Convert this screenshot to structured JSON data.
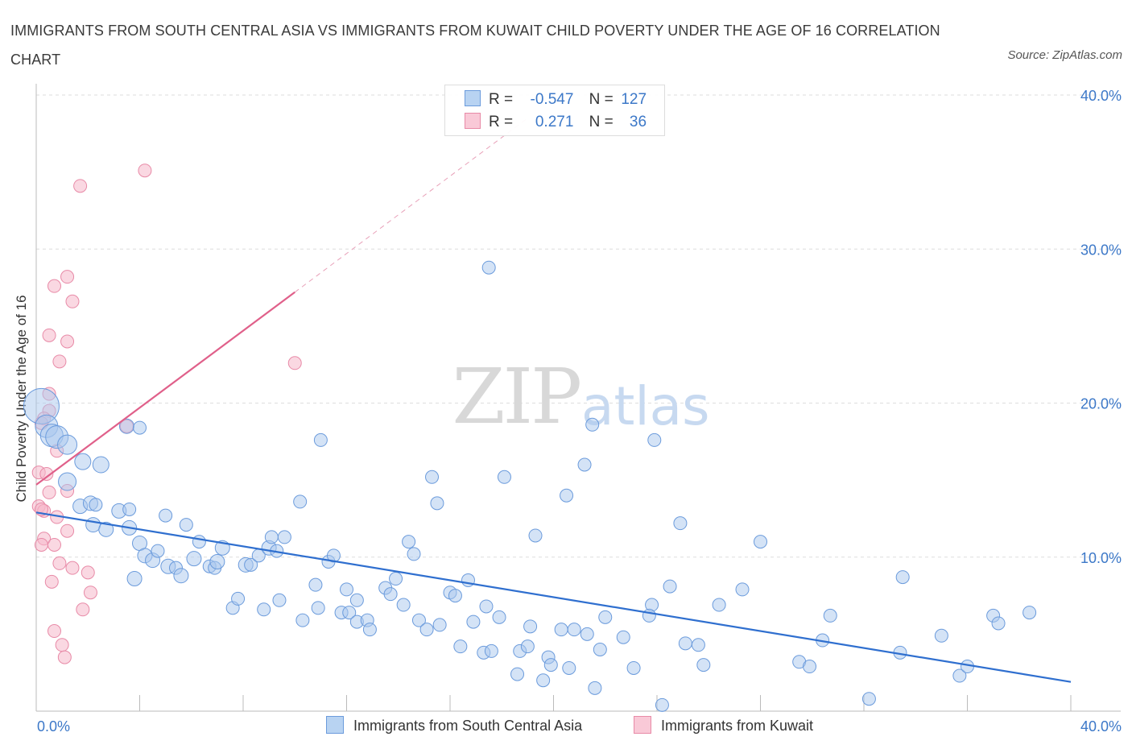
{
  "title": "IMMIGRANTS FROM SOUTH CENTRAL ASIA VS IMMIGRANTS FROM KUWAIT CHILD POVERTY UNDER THE AGE OF 16 CORRELATION CHART",
  "source": "Source: ZipAtlas.com",
  "watermark": {
    "zip": "ZIP",
    "atlas": "atlas"
  },
  "colors": {
    "blue": "#4a7fd4",
    "blue_fill": "#a9c8ee",
    "pink": "#e0608a",
    "pink_fill": "#f6b8cb",
    "axis_text": "#3c78c8"
  },
  "legend": {
    "rows": [
      {
        "r_label": "R =",
        "r_value": "-0.547",
        "n_label": "N =",
        "n_value": "127"
      },
      {
        "r_label": "R =",
        "r_value": "0.271",
        "n_label": "N =",
        "n_value": "36"
      }
    ]
  },
  "bottom_legend": [
    "Immigrants from South Central Asia",
    "Immigrants from Kuwait"
  ],
  "chart_data": {
    "type": "scatter",
    "ylabel": "Child Poverty Under the Age of 16",
    "xlabel": "",
    "xlim": [
      0,
      40
    ],
    "ylim": [
      0,
      40
    ],
    "x_tick_labels": [
      "0.0%",
      "40.0%"
    ],
    "y_tick_labels": [
      "10.0%",
      "20.0%",
      "30.0%",
      "40.0%"
    ],
    "y_ticks": [
      10,
      20,
      30,
      40
    ],
    "grid": true,
    "series": [
      {
        "name": "Immigrants from South Central Asia",
        "color": "#4a7fd4",
        "trend": {
          "x": [
            0,
            40
          ],
          "y": [
            12.9,
            1.9
          ]
        },
        "points": [
          [
            0.2,
            19.8,
            22
          ],
          [
            0.4,
            18.5,
            14
          ],
          [
            0.6,
            17.9,
            14
          ],
          [
            0.8,
            17.8,
            14
          ],
          [
            1.2,
            17.3,
            12
          ],
          [
            1.2,
            14.9,
            11
          ],
          [
            1.8,
            16.2,
            10
          ],
          [
            2.5,
            16.0,
            10
          ],
          [
            1.7,
            13.3,
            9
          ],
          [
            2.1,
            13.5,
            9
          ],
          [
            2.2,
            12.1,
            9
          ],
          [
            2.7,
            11.8,
            9
          ],
          [
            3.2,
            13.0,
            9
          ],
          [
            3.6,
            13.1,
            8
          ],
          [
            3.5,
            18.5,
            9
          ],
          [
            3.6,
            11.9,
            9
          ],
          [
            4.0,
            10.9,
            9
          ],
          [
            4.2,
            10.1,
            9
          ],
          [
            4.5,
            9.8,
            9
          ],
          [
            4.7,
            10.4,
            8
          ],
          [
            3.8,
            8.6,
            9
          ],
          [
            5.1,
            9.4,
            9
          ],
          [
            5.4,
            9.3,
            8
          ],
          [
            5.6,
            8.8,
            9
          ],
          [
            6.1,
            9.9,
            9
          ],
          [
            6.3,
            11.0,
            8
          ],
          [
            6.7,
            9.4,
            8
          ],
          [
            6.9,
            9.3,
            8
          ],
          [
            7.0,
            9.7,
            9
          ],
          [
            7.2,
            10.6,
            9
          ],
          [
            5.0,
            12.7,
            8
          ],
          [
            5.8,
            12.1,
            8
          ],
          [
            7.6,
            6.7,
            8
          ],
          [
            7.8,
            7.3,
            8
          ],
          [
            8.1,
            9.5,
            9
          ],
          [
            8.3,
            9.5,
            8
          ],
          [
            8.6,
            10.1,
            8
          ],
          [
            8.8,
            6.6,
            8
          ],
          [
            9.0,
            10.6,
            9
          ],
          [
            9.3,
            10.4,
            8
          ],
          [
            9.1,
            11.3,
            8
          ],
          [
            9.6,
            11.3,
            8
          ],
          [
            9.4,
            7.2,
            8
          ],
          [
            10.2,
            13.6,
            8
          ],
          [
            10.3,
            5.9,
            8
          ],
          [
            10.8,
            8.2,
            8
          ],
          [
            10.9,
            6.7,
            8
          ],
          [
            11.3,
            9.7,
            8
          ],
          [
            11.5,
            10.1,
            8
          ],
          [
            11.0,
            17.6,
            8
          ],
          [
            12.0,
            7.9,
            8
          ],
          [
            11.8,
            6.4,
            8
          ],
          [
            12.1,
            6.4,
            8
          ],
          [
            12.4,
            5.8,
            8
          ],
          [
            12.4,
            7.2,
            8
          ],
          [
            12.8,
            5.9,
            8
          ],
          [
            12.9,
            5.3,
            8
          ],
          [
            13.5,
            8.0,
            8
          ],
          [
            13.7,
            7.6,
            8
          ],
          [
            13.9,
            8.6,
            8
          ],
          [
            14.2,
            6.9,
            8
          ],
          [
            14.4,
            11.0,
            8
          ],
          [
            14.6,
            10.2,
            8
          ],
          [
            14.8,
            5.9,
            8
          ],
          [
            15.1,
            5.3,
            8
          ],
          [
            15.3,
            15.2,
            8
          ],
          [
            15.5,
            13.5,
            8
          ],
          [
            15.6,
            5.6,
            8
          ],
          [
            16.0,
            7.7,
            8
          ],
          [
            16.2,
            7.5,
            8
          ],
          [
            16.4,
            4.2,
            8
          ],
          [
            16.7,
            8.5,
            8
          ],
          [
            16.9,
            5.8,
            8
          ],
          [
            17.3,
            3.8,
            8
          ],
          [
            17.6,
            3.9,
            8
          ],
          [
            17.4,
            6.8,
            8
          ],
          [
            17.9,
            6.1,
            8
          ],
          [
            18.1,
            15.2,
            8
          ],
          [
            18.6,
            2.4,
            8
          ],
          [
            18.7,
            3.9,
            8
          ],
          [
            19.0,
            4.2,
            8
          ],
          [
            19.1,
            5.5,
            8
          ],
          [
            19.3,
            11.4,
            8
          ],
          [
            19.6,
            2.0,
            8
          ],
          [
            19.8,
            3.5,
            8
          ],
          [
            19.9,
            3.0,
            8
          ],
          [
            20.3,
            5.3,
            8
          ],
          [
            20.5,
            14.0,
            8
          ],
          [
            20.6,
            2.8,
            8
          ],
          [
            20.8,
            5.3,
            8
          ],
          [
            21.2,
            16.0,
            8
          ],
          [
            21.3,
            5.0,
            8
          ],
          [
            21.5,
            18.6,
            8
          ],
          [
            21.6,
            1.5,
            8
          ],
          [
            21.8,
            4.0,
            8
          ],
          [
            22.0,
            6.1,
            8
          ],
          [
            22.7,
            4.8,
            8
          ],
          [
            23.1,
            2.8,
            8
          ],
          [
            23.8,
            6.9,
            8
          ],
          [
            23.7,
            6.2,
            8
          ],
          [
            23.9,
            17.6,
            8
          ],
          [
            24.2,
            0.4,
            8
          ],
          [
            24.5,
            8.1,
            8
          ],
          [
            24.9,
            12.2,
            8
          ],
          [
            25.1,
            4.4,
            8
          ],
          [
            25.6,
            4.3,
            8
          ],
          [
            25.8,
            3.0,
            8
          ],
          [
            26.4,
            6.9,
            8
          ],
          [
            27.3,
            7.9,
            8
          ],
          [
            28.0,
            11.0,
            8
          ],
          [
            29.5,
            3.2,
            8
          ],
          [
            29.9,
            2.9,
            8
          ],
          [
            30.4,
            4.6,
            8
          ],
          [
            30.7,
            6.2,
            8
          ],
          [
            32.2,
            0.8,
            8
          ],
          [
            33.4,
            3.8,
            8
          ],
          [
            33.5,
            8.7,
            8
          ],
          [
            35.0,
            4.9,
            8
          ],
          [
            35.7,
            2.3,
            8
          ],
          [
            36.0,
            2.9,
            8
          ],
          [
            37.0,
            6.2,
            8
          ],
          [
            37.2,
            5.7,
            8
          ],
          [
            38.4,
            6.4,
            8
          ],
          [
            17.5,
            28.8,
            8
          ],
          [
            4.0,
            18.4,
            8
          ],
          [
            2.3,
            13.4,
            8
          ]
        ]
      },
      {
        "name": "Immigrants from Kuwait",
        "color": "#e0608a",
        "trend": {
          "x": [
            0,
            10
          ],
          "y": [
            14.7,
            27.2
          ],
          "dashed_to": {
            "x": [
              10,
              19
            ],
            "y": [
              27.2,
              38.5
            ]
          }
        },
        "points": [
          [
            4.2,
            35.1
          ],
          [
            1.7,
            34.1
          ],
          [
            1.2,
            28.2
          ],
          [
            0.7,
            27.6
          ],
          [
            1.4,
            26.6
          ],
          [
            0.5,
            24.4
          ],
          [
            1.2,
            24.0
          ],
          [
            0.9,
            22.7
          ],
          [
            10.0,
            22.6
          ],
          [
            0.5,
            20.6
          ],
          [
            0.5,
            19.5
          ],
          [
            0.3,
            19.0
          ],
          [
            0.2,
            18.7
          ],
          [
            3.5,
            18.5
          ],
          [
            0.8,
            16.9
          ],
          [
            0.1,
            15.5
          ],
          [
            0.4,
            15.4
          ],
          [
            1.2,
            14.3
          ],
          [
            0.5,
            14.2
          ],
          [
            0.1,
            13.3
          ],
          [
            0.3,
            13.0
          ],
          [
            0.2,
            13.1
          ],
          [
            0.8,
            12.6
          ],
          [
            1.2,
            11.7
          ],
          [
            0.3,
            11.2
          ],
          [
            0.2,
            10.8
          ],
          [
            0.7,
            10.8
          ],
          [
            0.9,
            9.6
          ],
          [
            1.4,
            9.3
          ],
          [
            0.6,
            8.4
          ],
          [
            2.1,
            7.7
          ],
          [
            1.8,
            6.6
          ],
          [
            0.7,
            5.2
          ],
          [
            1.0,
            4.3
          ],
          [
            1.1,
            3.5
          ],
          [
            2.0,
            9.0
          ]
        ]
      }
    ]
  }
}
